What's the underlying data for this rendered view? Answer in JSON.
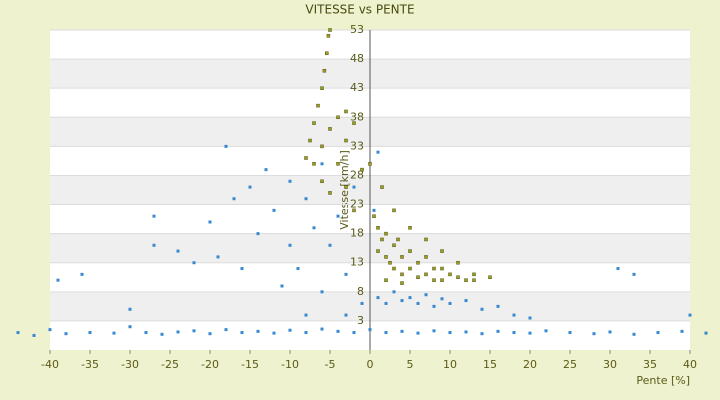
{
  "chart_data": {
    "type": "scatter",
    "title": "VITESSE vs PENTE",
    "x_label": "Pente [%]",
    "y_label": "Vitesse [km/h]",
    "xlim": [
      -40,
      40
    ],
    "xticks": [
      -40,
      -35,
      -30,
      -25,
      -20,
      -15,
      -10,
      -5,
      0,
      5,
      10,
      15,
      20,
      25,
      30,
      35,
      40
    ],
    "ylim": [
      -2,
      53
    ],
    "yticks": [
      3,
      8,
      13,
      18,
      23,
      28,
      33,
      38,
      43,
      48,
      53
    ],
    "grid": true,
    "series": [
      {
        "color": "#3a87d0",
        "x": [
          -44,
          -42,
          -40,
          -38,
          -35,
          -32,
          -30,
          -28,
          -26,
          -24,
          -22,
          -20,
          -18,
          -16,
          -14,
          -12,
          -10,
          -8,
          -6,
          -4,
          -2,
          0,
          2,
          4,
          6,
          8,
          10,
          12,
          14,
          16,
          18,
          20,
          22,
          25,
          28,
          30,
          33,
          36,
          39,
          42,
          44,
          -39,
          -36,
          -30,
          -27,
          -27,
          -24,
          -22,
          -20,
          -19,
          -18,
          -17,
          -16,
          -15,
          -14,
          -13,
          -12,
          -11,
          -10,
          -10,
          -9,
          -8,
          -7,
          -6,
          -6,
          -5,
          -4,
          -3,
          -2,
          -1,
          1,
          2,
          3,
          4,
          5,
          6,
          7,
          8,
          9,
          10,
          12,
          14,
          16,
          18,
          20,
          1,
          0.5,
          31,
          33,
          40,
          -3,
          -8
        ],
        "values": [
          1,
          0.5,
          1.5,
          0.8,
          1,
          0.9,
          2,
          1,
          0.7,
          1.1,
          1.3,
          0.8,
          1.5,
          1,
          1.2,
          0.9,
          1.4,
          1,
          1.6,
          1.2,
          1,
          1.5,
          1,
          1.2,
          0.9,
          1.3,
          1,
          1.1,
          0.8,
          1.2,
          1,
          0.9,
          1.3,
          1,
          0.8,
          1.1,
          0.7,
          1,
          1.2,
          0.9,
          1.1,
          10,
          11,
          5,
          21,
          16,
          15,
          13,
          20,
          14,
          33,
          24,
          12,
          26,
          18,
          29,
          22,
          9,
          27,
          16,
          12,
          24,
          19,
          30,
          8,
          16,
          21,
          11,
          26,
          6,
          7,
          6,
          8,
          6.5,
          7,
          6,
          7.5,
          5.5,
          6.8,
          6,
          6.5,
          5,
          5.5,
          4,
          3.5,
          32,
          22,
          12,
          11,
          4,
          4,
          4
        ]
      },
      {
        "color": "#a0a020",
        "x": [
          -8,
          -7.5,
          -7,
          -6.5,
          -6,
          -5.7,
          -5.4,
          -5.2,
          -5,
          -7,
          -6,
          -5,
          -4,
          -3,
          -6,
          -4,
          -3,
          -2,
          -5,
          -3,
          -1,
          -2,
          0,
          0.5,
          1,
          1,
          1.5,
          2,
          2,
          2.5,
          3,
          3,
          3.5,
          4,
          4,
          5,
          5,
          6,
          6,
          7,
          7,
          8,
          8,
          9,
          9,
          10,
          11,
          12,
          13,
          3,
          5,
          7,
          9,
          11,
          13,
          15,
          1.5,
          2,
          4
        ],
        "values": [
          31,
          34,
          37,
          40,
          43,
          46,
          49,
          52,
          53,
          30,
          33,
          36,
          38,
          39,
          27,
          30,
          34,
          37,
          25,
          26,
          29,
          22,
          30,
          21,
          19,
          15,
          17,
          18,
          14,
          13,
          16,
          12,
          17,
          14,
          11,
          15,
          12,
          13,
          10.5,
          14,
          11,
          12,
          10,
          12,
          10,
          11,
          10.5,
          10,
          10,
          22,
          19,
          17,
          15,
          13,
          11,
          10.5,
          26,
          10,
          9.5
        ]
      }
    ]
  }
}
